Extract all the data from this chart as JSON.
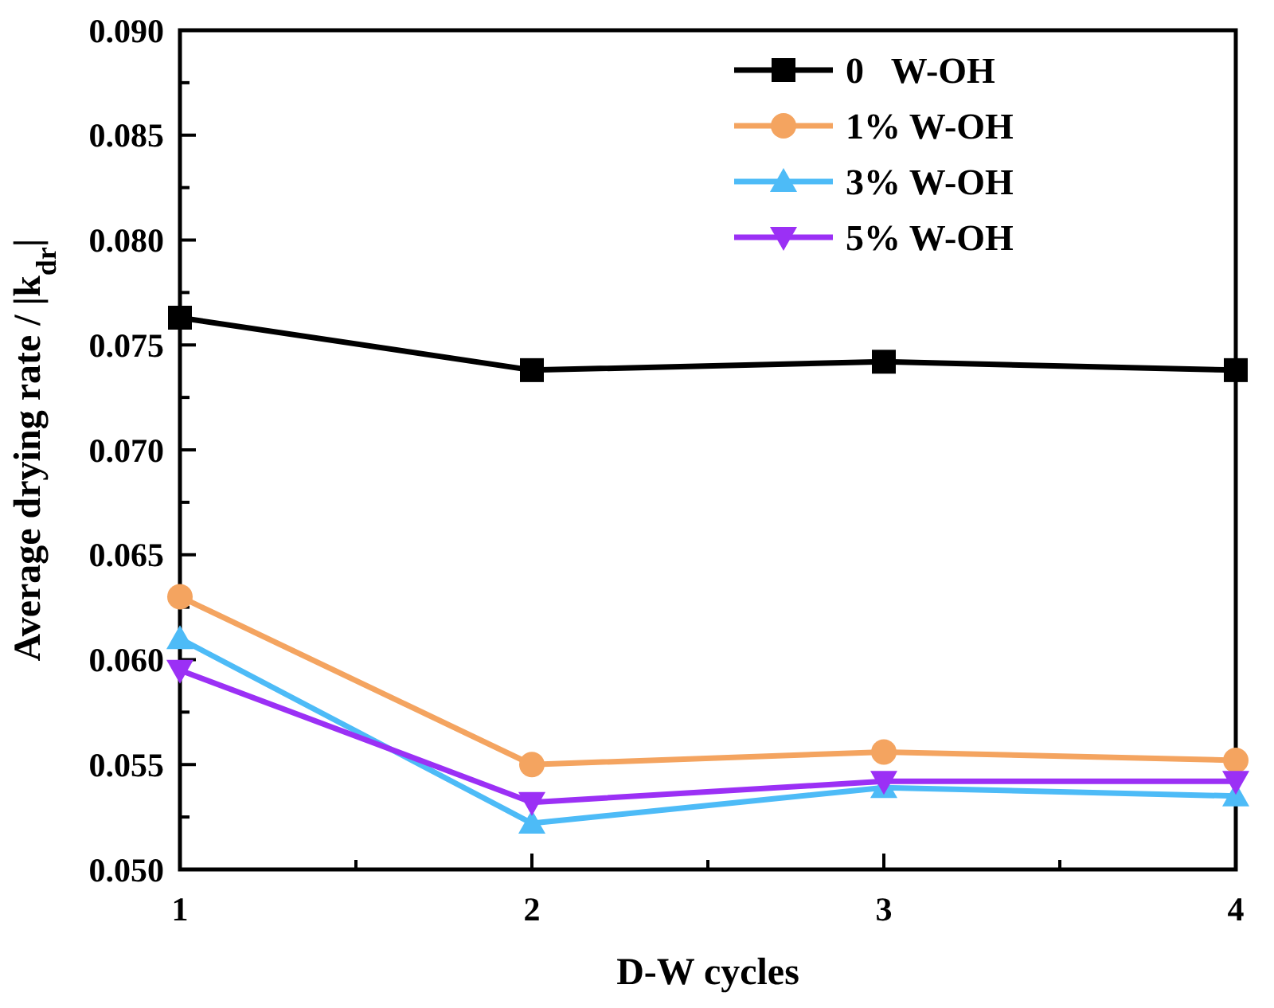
{
  "chart_data": {
    "type": "line",
    "xlabel": "D-W cycles",
    "ylabel": "Average drying rate / |k$_{dr}$|",
    "x": [
      1,
      2,
      3,
      4
    ],
    "xlim": [
      1,
      4
    ],
    "xticks": [
      1,
      {
        "value": 1.5,
        "label": null
      },
      2,
      {
        "value": 2.5,
        "label": null
      },
      3,
      {
        "value": 3.5,
        "label": null
      },
      4
    ],
    "ylim": [
      0.05,
      0.09
    ],
    "yticks": [
      {
        "value": 0.05,
        "label": "0.050"
      },
      {
        "value": 0.0525,
        "label": null
      },
      {
        "value": 0.055,
        "label": "0.055"
      },
      {
        "value": 0.0575,
        "label": null
      },
      {
        "value": 0.06,
        "label": "0.060"
      },
      {
        "value": 0.0625,
        "label": null
      },
      {
        "value": 0.065,
        "label": "0.065"
      },
      {
        "value": 0.0675,
        "label": null
      },
      {
        "value": 0.07,
        "label": "0.070"
      },
      {
        "value": 0.0725,
        "label": null
      },
      {
        "value": 0.075,
        "label": "0.075"
      },
      {
        "value": 0.0775,
        "label": null
      },
      {
        "value": 0.08,
        "label": "0.080"
      },
      {
        "value": 0.0825,
        "label": null
      },
      {
        "value": 0.085,
        "label": "0.085"
      },
      {
        "value": 0.0875,
        "label": null
      },
      {
        "value": 0.09,
        "label": "0.090"
      }
    ],
    "legend": "top right",
    "grid": false,
    "series": [
      {
        "name": "0   W-OH",
        "color": "#000000",
        "marker": "square",
        "values": [
          0.0763,
          0.0738,
          0.0742,
          0.0738
        ]
      },
      {
        "name": "1% W-OH",
        "color": "#f4a460",
        "marker": "circle",
        "values": [
          0.063,
          0.055,
          0.0556,
          0.0552
        ]
      },
      {
        "name": "3% W-OH",
        "color": "#4dbbf7",
        "marker": "triangle",
        "values": [
          0.061,
          0.0522,
          0.0539,
          0.0535
        ]
      },
      {
        "name": "5% W-OH",
        "color": "#9b30f5",
        "marker": "triangle-down",
        "values": [
          0.0595,
          0.0532,
          0.0542,
          0.0542
        ]
      }
    ]
  }
}
